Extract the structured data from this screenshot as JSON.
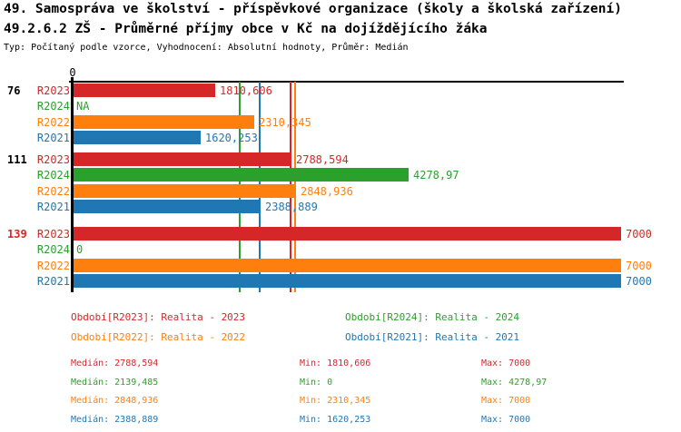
{
  "header": {
    "title": "49. Samospráva ve školství - příspěvkové organizace (školy a školská zařízení)",
    "subtitle": "49.2.6.2 ZŠ - Průměrné příjmy obce v Kč na dojíždějícího žáka",
    "meta": "Typ: Počítaný podle vzorce, Vyhodnocení: Absolutní hodnoty, Průměr: Medián"
  },
  "colors": {
    "R2023": "#d62728",
    "R2024": "#2ca02c",
    "R2022": "#ff7f0e",
    "R2021": "#1f77b4",
    "black": "#000000",
    "highlight": "#d62728"
  },
  "chart_data": {
    "type": "bar",
    "orientation": "horizontal",
    "xlim": [
      0,
      7000
    ],
    "x_tick_label": "0",
    "series_order": [
      "R2023",
      "R2024",
      "R2022",
      "R2021"
    ],
    "groups": [
      {
        "label": "76",
        "label_color": "black",
        "bars": [
          {
            "series": "R2023",
            "value": 1810.606,
            "label": "1810,606"
          },
          {
            "series": "R2024",
            "value": null,
            "label": "NA"
          },
          {
            "series": "R2022",
            "value": 2310.345,
            "label": "2310,345"
          },
          {
            "series": "R2021",
            "value": 1620.253,
            "label": "1620,253"
          }
        ]
      },
      {
        "label": "111",
        "label_color": "black",
        "bars": [
          {
            "series": "R2023",
            "value": 2788.594,
            "label": "2788,594"
          },
          {
            "series": "R2024",
            "value": 4278.97,
            "label": "4278,97"
          },
          {
            "series": "R2022",
            "value": 2848.936,
            "label": "2848,936"
          },
          {
            "series": "R2021",
            "value": 2388.889,
            "label": "2388,889"
          }
        ]
      },
      {
        "label": "139",
        "label_color": "highlight",
        "bars": [
          {
            "series": "R2023",
            "value": 7000,
            "label": "7000"
          },
          {
            "series": "R2024",
            "value": 0,
            "label": "0"
          },
          {
            "series": "R2022",
            "value": 7000,
            "label": "7000"
          },
          {
            "series": "R2021",
            "value": 7000,
            "label": "7000"
          }
        ]
      }
    ],
    "median_lines": [
      {
        "series": "R2023",
        "value": 2788.594
      },
      {
        "series": "R2024",
        "value": 2139.485
      },
      {
        "series": "R2022",
        "value": 2848.936
      },
      {
        "series": "R2021",
        "value": 2388.889
      }
    ]
  },
  "legend": [
    {
      "series": "R2023",
      "label": "Období[R2023]: Realita - 2023"
    },
    {
      "series": "R2024",
      "label": "Období[R2024]: Realita - 2024"
    },
    {
      "series": "R2022",
      "label": "Období[R2022]: Realita - 2022"
    },
    {
      "series": "R2021",
      "label": "Období[R2021]: Realita - 2021"
    }
  ],
  "stats": [
    {
      "series": "R2023",
      "median": "Medián: 2788,594",
      "min": "Min: 1810,606",
      "max": "Max: 7000"
    },
    {
      "series": "R2024",
      "median": "Medián: 2139,485",
      "min": "Min: 0",
      "max": "Max: 4278,97"
    },
    {
      "series": "R2022",
      "median": "Medián: 2848,936",
      "min": "Min: 2310,345",
      "max": "Max: 7000"
    },
    {
      "series": "R2021",
      "median": "Medián: 2388,889",
      "min": "Min: 1620,253",
      "max": "Max: 7000"
    }
  ]
}
